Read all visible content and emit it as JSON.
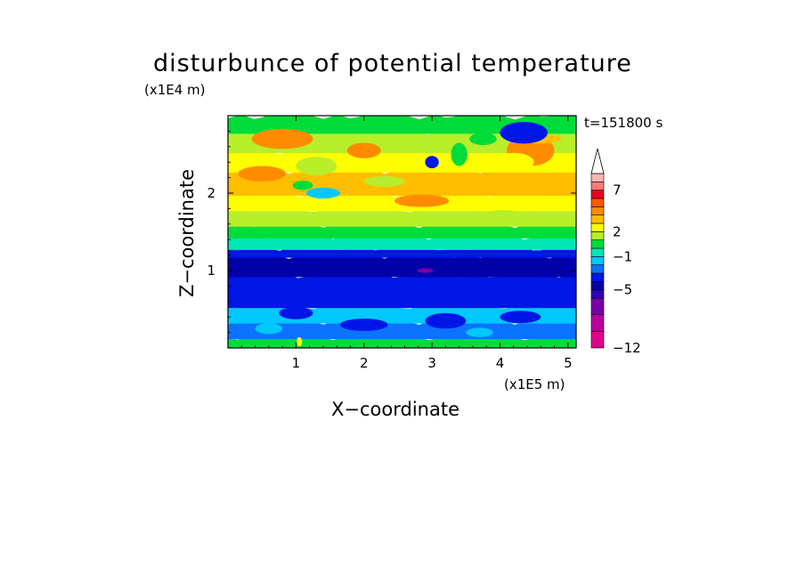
{
  "chart_data": {
    "type": "heatmap",
    "title": "disturbunce of potential temperature",
    "time_label": "t=151800 s",
    "xlabel": "X−coordinate",
    "ylabel": "Z−coordinate",
    "x_unit": "(x1E5 m)",
    "y_unit": "(x1E4 m)",
    "xlim": [
      0,
      5.12
    ],
    "ylim": [
      0,
      3.0
    ],
    "x_ticks": [
      1,
      2,
      3,
      4,
      5
    ],
    "y_ticks": [
      1,
      2
    ],
    "colorbar": {
      "min": -12,
      "max": 9,
      "extend": "max",
      "tick_values": [
        7,
        2,
        -1,
        -5,
        -12
      ],
      "tick_labels": [
        "7",
        "2",
        "−1",
        "−5",
        "−12"
      ],
      "levels": [
        {
          "lo": -12,
          "hi": -10,
          "color": "#e2008f"
        },
        {
          "lo": -10,
          "hi": -8,
          "color": "#b8009e"
        },
        {
          "lo": -8,
          "hi": -6,
          "color": "#7a00a8"
        },
        {
          "lo": -6,
          "hi": -5,
          "color": "#2f00b3"
        },
        {
          "lo": -5,
          "hi": -4,
          "color": "#0000a8"
        },
        {
          "lo": -4,
          "hi": -3,
          "color": "#0016e6"
        },
        {
          "lo": -3,
          "hi": -2,
          "color": "#0b73ff"
        },
        {
          "lo": -2,
          "hi": -1,
          "color": "#00c8ff"
        },
        {
          "lo": -1,
          "hi": 0,
          "color": "#00e6b4"
        },
        {
          "lo": 0,
          "hi": 1,
          "color": "#00dc3a"
        },
        {
          "lo": 1,
          "hi": 2,
          "color": "#b8ee2a"
        },
        {
          "lo": 2,
          "hi": 3,
          "color": "#ffff00"
        },
        {
          "lo": 3,
          "hi": 4,
          "color": "#ffbe00"
        },
        {
          "lo": 4,
          "hi": 5,
          "color": "#ff8c00"
        },
        {
          "lo": 5,
          "hi": 6,
          "color": "#ff5a00"
        },
        {
          "lo": 6,
          "hi": 7,
          "color": "#e8001f"
        },
        {
          "lo": 7,
          "hi": 8,
          "color": "#ff7a7a"
        },
        {
          "lo": 8,
          "hi": 9,
          "color": "#ffb4b4"
        },
        {
          "lo": 9,
          "hi": 10,
          "color": "#ffffff"
        }
      ]
    },
    "layers": [
      {
        "z": [
          0.0,
          0.15
        ],
        "color": "#00dc3a"
      },
      {
        "z": [
          0.15,
          0.35
        ],
        "color": "#0b73ff"
      },
      {
        "z": [
          0.35,
          0.55
        ],
        "color": "#00c8ff"
      },
      {
        "z": [
          0.55,
          0.95
        ],
        "color": "#0016e6"
      },
      {
        "z": [
          0.95,
          1.2
        ],
        "color": "#0000a8"
      },
      {
        "z": [
          1.2,
          1.3
        ],
        "color": "#0016e6"
      },
      {
        "z": [
          1.3,
          1.45
        ],
        "color": "#00e6b4"
      },
      {
        "z": [
          1.45,
          1.6
        ],
        "color": "#00dc3a"
      },
      {
        "z": [
          1.6,
          1.8
        ],
        "color": "#b8ee2a"
      },
      {
        "z": [
          1.8,
          2.0
        ],
        "color": "#ffff00"
      },
      {
        "z": [
          2.0,
          2.3
        ],
        "color": "#ffbe00"
      },
      {
        "z": [
          2.3,
          2.55
        ],
        "color": "#ffff00"
      },
      {
        "z": [
          2.55,
          2.8
        ],
        "color": "#b8ee2a"
      },
      {
        "z": [
          2.8,
          3.0
        ],
        "color": "#00dc3a"
      }
    ],
    "features": [
      {
        "x": 0.8,
        "z": 2.7,
        "rx": 0.45,
        "rz": 0.13,
        "color": "#ff8c00"
      },
      {
        "x": 0.5,
        "z": 2.25,
        "rx": 0.35,
        "rz": 0.1,
        "color": "#ff8c00"
      },
      {
        "x": 1.3,
        "z": 2.35,
        "rx": 0.3,
        "rz": 0.12,
        "color": "#b8ee2a"
      },
      {
        "x": 2.0,
        "z": 2.55,
        "rx": 0.25,
        "rz": 0.1,
        "color": "#ff8c00"
      },
      {
        "x": 2.85,
        "z": 1.9,
        "rx": 0.4,
        "rz": 0.08,
        "color": "#ff8c00"
      },
      {
        "x": 4.45,
        "z": 2.55,
        "rx": 0.35,
        "rz": 0.2,
        "color": "#ff8c00"
      },
      {
        "x": 4.2,
        "z": 2.4,
        "rx": 0.3,
        "rz": 0.12,
        "color": "#ffff00"
      },
      {
        "x": 4.6,
        "z": 2.7,
        "rx": 0.3,
        "rz": 0.06,
        "color": "#ffbe00"
      },
      {
        "x": 4.35,
        "z": 2.78,
        "rx": 0.35,
        "rz": 0.14,
        "color": "#0016e6"
      },
      {
        "x": 3.0,
        "z": 2.4,
        "rx": 0.1,
        "rz": 0.08,
        "color": "#0016e6"
      },
      {
        "x": 1.4,
        "z": 2.0,
        "rx": 0.25,
        "rz": 0.07,
        "color": "#00c8ff"
      },
      {
        "x": 1.1,
        "z": 2.1,
        "rx": 0.15,
        "rz": 0.06,
        "color": "#00dc3a"
      },
      {
        "x": 3.4,
        "z": 2.5,
        "rx": 0.12,
        "rz": 0.15,
        "color": "#00dc3a"
      },
      {
        "x": 3.75,
        "z": 2.7,
        "rx": 0.2,
        "rz": 0.08,
        "color": "#00dc3a"
      },
      {
        "x": 2.3,
        "z": 2.15,
        "rx": 0.3,
        "rz": 0.07,
        "color": "#b8ee2a"
      },
      {
        "x": 4.05,
        "z": 1.72,
        "rx": 0.3,
        "rz": 0.06,
        "color": "#b8ee2a"
      },
      {
        "x": 2.9,
        "z": 1.0,
        "rx": 0.12,
        "rz": 0.03,
        "color": "#7a00a8"
      },
      {
        "x": 1.0,
        "z": 0.45,
        "rx": 0.25,
        "rz": 0.08,
        "color": "#0016e6"
      },
      {
        "x": 2.0,
        "z": 0.3,
        "rx": 0.35,
        "rz": 0.08,
        "color": "#0016e6"
      },
      {
        "x": 3.2,
        "z": 0.35,
        "rx": 0.3,
        "rz": 0.1,
        "color": "#0016e6"
      },
      {
        "x": 4.3,
        "z": 0.4,
        "rx": 0.3,
        "rz": 0.08,
        "color": "#0016e6"
      },
      {
        "x": 0.6,
        "z": 0.25,
        "rx": 0.2,
        "rz": 0.07,
        "color": "#00c8ff"
      },
      {
        "x": 3.7,
        "z": 0.2,
        "rx": 0.2,
        "rz": 0.06,
        "color": "#00c8ff"
      },
      {
        "x": 1.05,
        "z": 0.08,
        "rx": 0.04,
        "rz": 0.06,
        "color": "#ffff00"
      }
    ]
  }
}
